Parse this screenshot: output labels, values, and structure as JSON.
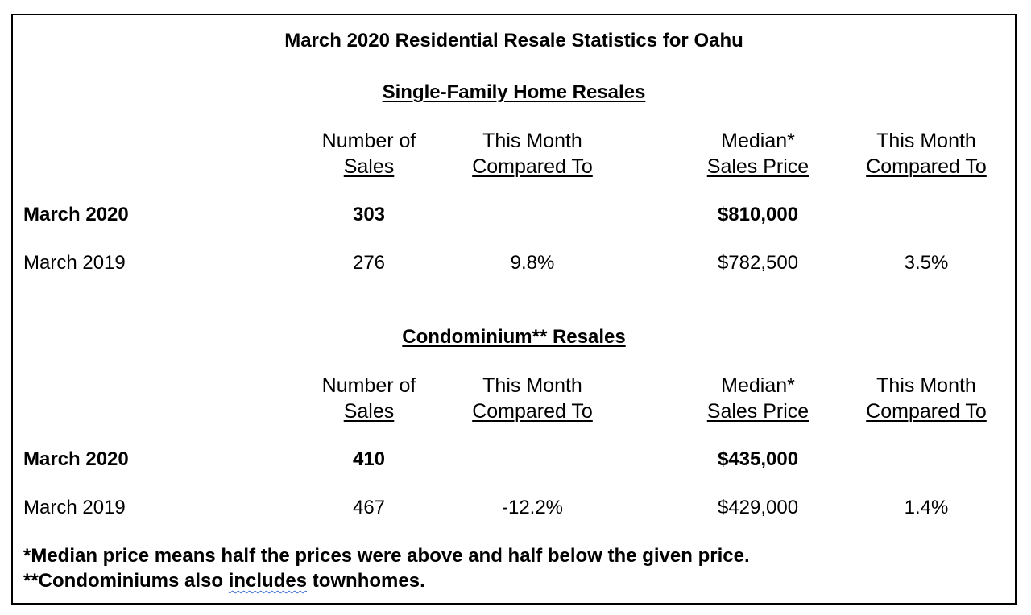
{
  "title": "March 2020 Residential Resale Statistics for Oahu",
  "sections": [
    {
      "heading": "Single-Family Home Resales",
      "headers": {
        "sales_line1": "Number of",
        "sales_line2": "Sales",
        "cmp1_line1": "This Month",
        "cmp1_line2": "Compared To",
        "price_line1": "Median*",
        "price_line2": "Sales Price",
        "cmp2_line1": "This Month",
        "cmp2_line2": "Compared To"
      },
      "rows": [
        {
          "label": "March 2020",
          "sales": "303",
          "cmp1": "",
          "price": "$810,000",
          "cmp2": ""
        },
        {
          "label": "March 2019",
          "sales": "276",
          "cmp1": "9.8%",
          "price": "$782,500",
          "cmp2": "3.5%"
        }
      ]
    },
    {
      "heading": "Condominium** Resales",
      "headers": {
        "sales_line1": "Number of",
        "sales_line2": "Sales",
        "cmp1_line1": "This Month",
        "cmp1_line2": "Compared To",
        "price_line1": "Median*",
        "price_line2": "Sales Price",
        "cmp2_line1": "This Month",
        "cmp2_line2": "Compared To"
      },
      "rows": [
        {
          "label": "March 2020",
          "sales": "410",
          "cmp1": "",
          "price": "$435,000",
          "cmp2": ""
        },
        {
          "label": "March 2019",
          "sales": "467",
          "cmp1": "-12.2%",
          "price": "$429,000",
          "cmp2": "1.4%"
        }
      ]
    }
  ],
  "footnotes": {
    "median": "*Median price means half the prices were above and half below the given price.",
    "condo_before": "**Condominiums also ",
    "condo_flagged": "includes",
    "condo_after": " townhomes."
  }
}
